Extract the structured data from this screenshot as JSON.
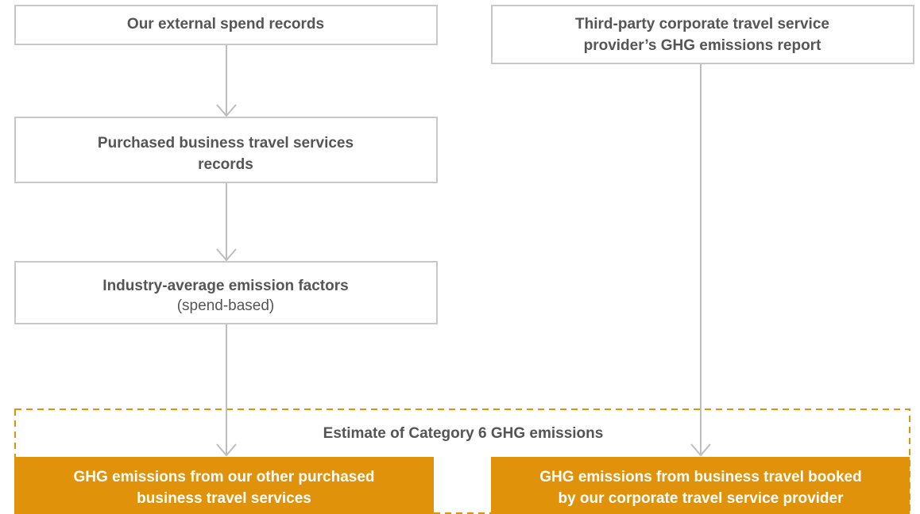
{
  "nodes": [
    {
      "lines": [
        "Our external spend records"
      ]
    },
    {
      "lines": [
        "Third-party corporate travel service",
        "provider’s GHG emissions report"
      ]
    },
    {
      "lines": [
        "Purchased business travel services",
        "records"
      ]
    },
    {
      "lines": [
        "Industry-average emission factors"
      ],
      "note": "(spend-based)"
    },
    {
      "lines": [
        "GHG emissions from our other purchased",
        "business travel services"
      ]
    },
    {
      "lines": [
        "GHG emissions from business travel booked",
        "by our corporate travel service provider"
      ]
    }
  ],
  "group": {
    "label": "Estimate of Category 6 GHG emissions"
  }
}
